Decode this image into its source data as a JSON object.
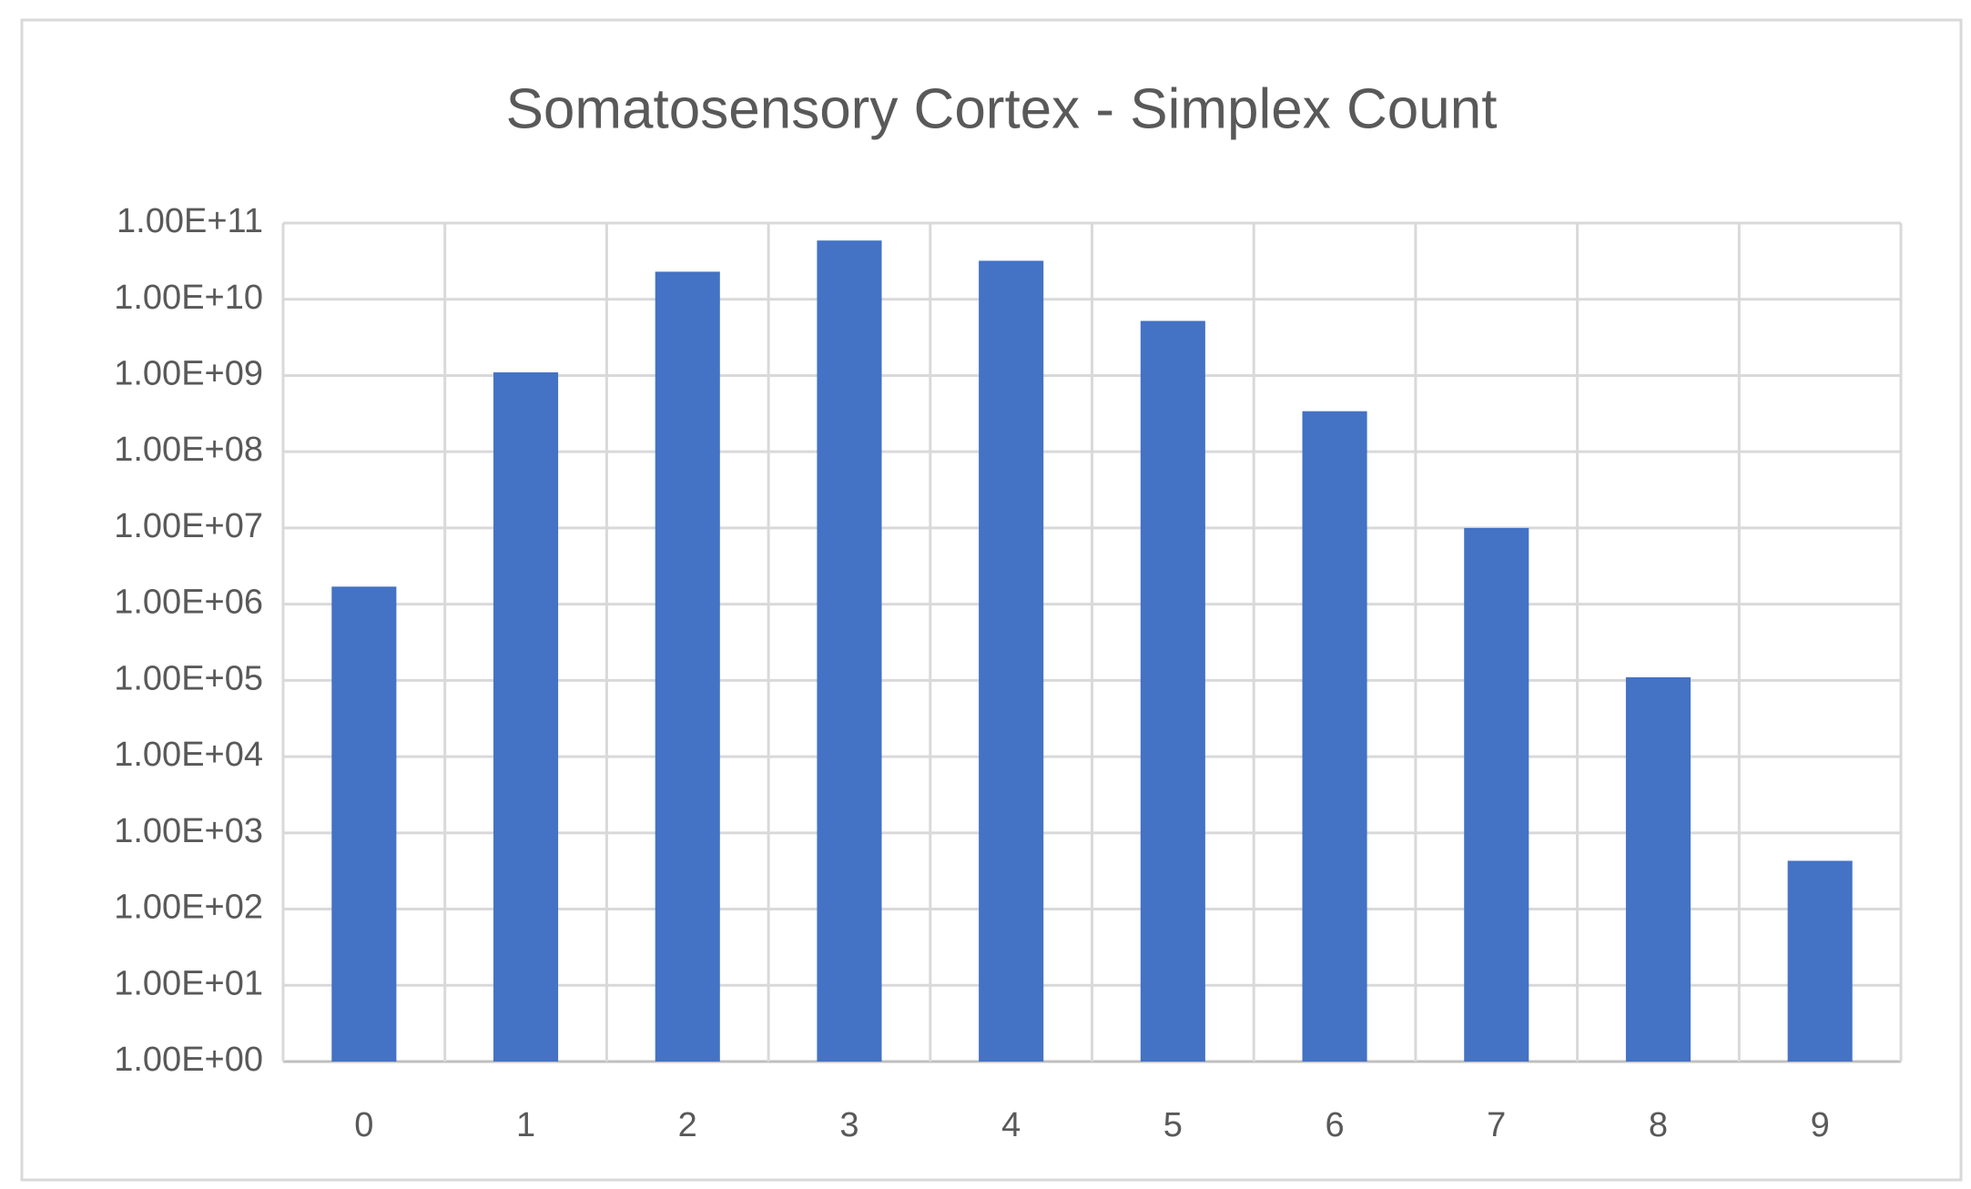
{
  "chart_data": {
    "type": "bar",
    "title": "Somatosensory Cortex - Simplex Count",
    "categories": [
      "0",
      "1",
      "2",
      "3",
      "4",
      "5",
      "6",
      "7",
      "8",
      "9"
    ],
    "values": [
      1700000,
      1100000000,
      23000000000,
      59000000000,
      32000000000,
      5200000000,
      340000000,
      10000000,
      110000,
      430
    ],
    "color": "#4472c4",
    "log_scale": true,
    "ylim": [
      1,
      100000000000
    ],
    "yticks": [
      {
        "value": 1,
        "label": "1.00E+00"
      },
      {
        "value": 10,
        "label": "1.00E+01"
      },
      {
        "value": 100,
        "label": "1.00E+02"
      },
      {
        "value": 1000,
        "label": "1.00E+03"
      },
      {
        "value": 10000,
        "label": "1.00E+04"
      },
      {
        "value": 100000,
        "label": "1.00E+05"
      },
      {
        "value": 1000000,
        "label": "1.00E+06"
      },
      {
        "value": 10000000,
        "label": "1.00E+07"
      },
      {
        "value": 100000000,
        "label": "1.00E+08"
      },
      {
        "value": 1000000000,
        "label": "1.00E+09"
      },
      {
        "value": 10000000000,
        "label": "1.00E+10"
      },
      {
        "value": 100000000000,
        "label": "1.00E+11"
      }
    ],
    "grid": true
  }
}
